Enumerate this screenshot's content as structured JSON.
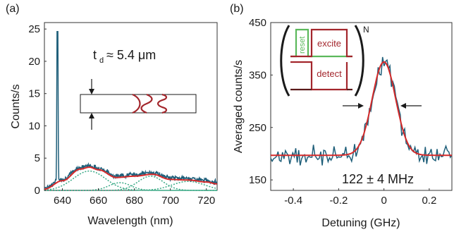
{
  "colors": {
    "data": "#1f5f7a",
    "fit": "#d42a2a",
    "gauss": "#3aaa86",
    "inset_red": "#a3262c",
    "inset_green": "#5bb85b",
    "axis": "#333333"
  },
  "panel_a": {
    "label": "(a)",
    "annotation_t": "t",
    "annotation_sub": "d",
    "annotation_rest": "≈ 5.4 μm",
    "chart_data": {
      "type": "line",
      "xlabel": "Wavelength (nm)",
      "ylabel": "Counts/s",
      "xlim": [
        630,
        726
      ],
      "ylim": [
        0,
        26
      ],
      "xticks": [
        640,
        660,
        680,
        700,
        720
      ],
      "yticks": [
        0,
        5,
        10,
        15,
        20,
        25
      ],
      "sharp_peak": {
        "x": 637.2,
        "y": 24.6
      },
      "fit_curve": {
        "x": [
          630,
          640,
          650,
          655,
          660,
          670,
          680,
          690,
          700,
          710,
          720,
          726
        ],
        "y": [
          0.2,
          1.5,
          3.3,
          3.6,
          3.2,
          2.0,
          2.2,
          2.5,
          1.7,
          1.6,
          1.3,
          1.0
        ]
      },
      "gaussians": [
        {
          "center": 655,
          "amp": 3.0,
          "width": 9
        },
        {
          "center": 672,
          "amp": 1.2,
          "width": 6
        },
        {
          "center": 689,
          "amp": 2.2,
          "width": 7
        },
        {
          "center": 710,
          "amp": 1.4,
          "width": 9
        }
      ]
    }
  },
  "panel_b": {
    "label": "(b)",
    "fwhm_text": "122 ± 4 MHz",
    "inset": {
      "reset": "reset",
      "excite": "excite",
      "detect": "detect",
      "superscript": "N"
    },
    "chart_data": {
      "type": "line",
      "xlabel": "Detuning (GHz)",
      "ylabel": "Averaged counts/s",
      "xlim": [
        -0.5,
        0.3
      ],
      "ylim": [
        130,
        450
      ],
      "xticks": [
        -0.4,
        -0.2,
        0,
        0.2
      ],
      "yticks": [
        150,
        250,
        350,
        450
      ],
      "fit": {
        "baseline": 197,
        "amplitude": 178,
        "center": 0.0,
        "fwhm_ghz": 0.122
      }
    }
  }
}
